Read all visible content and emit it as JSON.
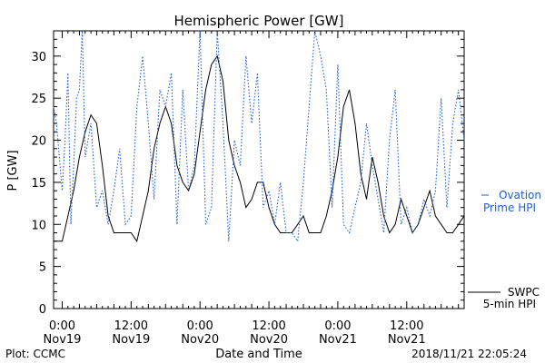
{
  "chart_data": {
    "type": "line",
    "title": "Hemispheric Power [GW]",
    "xlabel": "Date and Time",
    "ylabel": "P [GW]",
    "ylim": [
      0,
      33
    ],
    "yticks": [
      0,
      5,
      10,
      15,
      20,
      25,
      30
    ],
    "xlim_hours": [
      0,
      70
    ],
    "xticks": [
      {
        "hour": 0,
        "line1": "0:00",
        "line2": "Nov19"
      },
      {
        "hour": 12,
        "line1": "12:00",
        "line2": "Nov19"
      },
      {
        "hour": 24,
        "line1": "0:00",
        "line2": "Nov20"
      },
      {
        "hour": 36,
        "line1": "12:00",
        "line2": "Nov20"
      },
      {
        "hour": 48,
        "line1": "0:00",
        "line2": "Nov21"
      },
      {
        "hour": 60,
        "line1": "12:00",
        "line2": "Nov21"
      }
    ],
    "grid": false,
    "series": [
      {
        "name": "SWPC 5-min HPI",
        "color": "#000000",
        "style": "solid",
        "x": [
          -1.5,
          0,
          1,
          2,
          3,
          4,
          5,
          6,
          7,
          8,
          9,
          10,
          11,
          12,
          13,
          14,
          15,
          16,
          17,
          18,
          19,
          20,
          21,
          22,
          23,
          24,
          25,
          26,
          27,
          28,
          29,
          30,
          31,
          32,
          33,
          34,
          35,
          36,
          37,
          38,
          39,
          40,
          41,
          42,
          43,
          44,
          45,
          46,
          47,
          48,
          49,
          50,
          51,
          52,
          53,
          54,
          55,
          56,
          57,
          58,
          59,
          60,
          61,
          62,
          63,
          64,
          65,
          66,
          67,
          68,
          69,
          70
        ],
        "y": [
          8,
          8,
          11,
          14,
          18,
          21,
          23,
          22,
          17,
          11,
          9,
          9,
          9,
          9,
          8,
          11,
          14,
          19,
          22,
          24,
          22,
          17,
          15,
          14,
          16,
          21,
          26,
          29,
          30,
          27,
          20,
          17,
          15,
          12,
          13,
          15,
          15,
          12,
          10,
          9,
          9,
          9,
          10,
          11,
          9,
          9,
          9,
          11,
          14,
          18,
          24,
          26,
          22,
          16,
          13,
          18,
          15,
          11,
          9,
          10,
          13,
          11,
          9,
          10,
          12,
          14,
          11,
          10,
          9,
          9,
          10,
          11
        ]
      },
      {
        "name": "Ovation Prime HPI",
        "color": "#1f5fd0",
        "style": "dotted",
        "x": [
          -1.5,
          -1,
          0,
          0.5,
          1,
          1.5,
          2,
          2.5,
          3,
          3.5,
          4,
          5,
          6,
          7,
          8,
          9,
          10,
          11,
          12,
          13,
          14,
          15,
          16,
          17,
          18,
          19,
          20,
          21,
          22,
          23,
          24,
          25,
          26,
          27,
          28,
          29,
          30,
          31,
          32,
          33,
          34,
          35,
          36,
          37,
          38,
          39,
          40,
          41,
          42,
          43,
          44,
          45,
          46,
          47,
          48,
          49,
          50,
          51,
          52,
          53,
          54,
          55,
          56,
          57,
          58,
          59,
          60,
          61,
          62,
          63,
          64,
          65,
          66,
          67,
          68,
          69,
          70
        ],
        "y": [
          24,
          22,
          14,
          20,
          28,
          10,
          17,
          25,
          26,
          33,
          18,
          22,
          12,
          14,
          10,
          14,
          19,
          10,
          11,
          24,
          30,
          22,
          13,
          26,
          24,
          28,
          10,
          26,
          14,
          17,
          33,
          10,
          12,
          33,
          22,
          8,
          20,
          17,
          30,
          22,
          28,
          12,
          14,
          10,
          15,
          9,
          9,
          8,
          15,
          24,
          33,
          30,
          26,
          12,
          29,
          10,
          9,
          12,
          15,
          22,
          17,
          13,
          9,
          20,
          26,
          10,
          12,
          9,
          10,
          13,
          11,
          14,
          25,
          12,
          22,
          26,
          20
        ]
      }
    ]
  },
  "legend": {
    "ovation_line1": "Ovation",
    "ovation_line2": "Prime HPI",
    "swpc_line1": "SWPC",
    "swpc_line2": "5-min HPI"
  },
  "footer": {
    "left": "Plot: CCMC",
    "right": "2018/11/21 22:05:24"
  }
}
